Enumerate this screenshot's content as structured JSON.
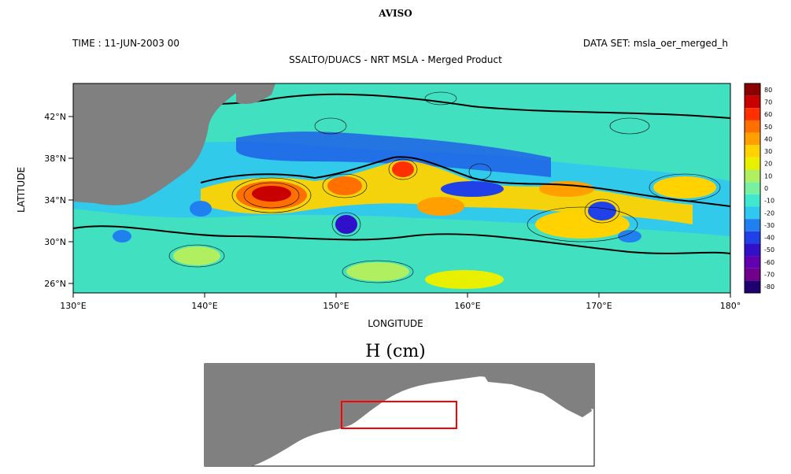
{
  "header": {
    "title": "AVISO",
    "time_label": "TIME : 11-JUN-2003 00",
    "dataset_label": "DATA SET: msla_oer_merged_h",
    "subtitle": "SSALTO/DUACS - NRT MSLA - Merged Product"
  },
  "axes": {
    "x_label": "LONGITUDE",
    "y_label": "LATITUDE",
    "x_ticks": [
      "130°E",
      "140°E",
      "150°E",
      "160°E",
      "170°E",
      "180°"
    ],
    "y_ticks": [
      "42°N",
      "38°N",
      "34°N",
      "30°N",
      "26°N"
    ],
    "x_range": [
      130,
      180
    ],
    "y_range": [
      25,
      45
    ]
  },
  "colorbar": {
    "labels": [
      "80",
      "70",
      "60",
      "50",
      "40",
      "30",
      "20",
      "10",
      "0",
      "-10",
      "-20",
      "-30",
      "-40",
      "-50",
      "-60",
      "-70",
      "-80"
    ],
    "colors": [
      "#8b0000",
      "#c80000",
      "#ff3000",
      "#ff7000",
      "#ffa000",
      "#ffd200",
      "#e8f000",
      "#b0f060",
      "#78f0a0",
      "#40e8d0",
      "#30c8f0",
      "#2080f0",
      "#2040e8",
      "#3010c8",
      "#6000b0",
      "#70008c",
      "#200070"
    ]
  },
  "inset": {
    "title": "H (cm)",
    "highlight_color": "#ff0000"
  }
}
